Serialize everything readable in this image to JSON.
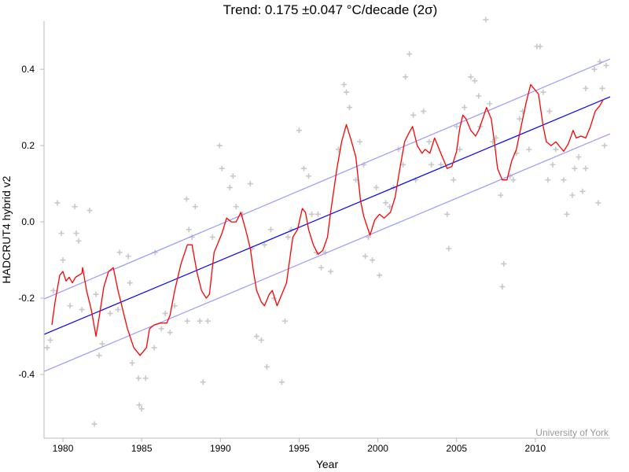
{
  "chart_data": {
    "type": "scatter",
    "title": "Trend: 0.175 ±0.047 °C/decade (2σ)",
    "xlabel": "Year",
    "ylabel": "HADCRUT4 hybrid v2",
    "credit": "University of York",
    "xlim": [
      1978.8,
      2014.75
    ],
    "ylim": [
      -0.567,
      0.526
    ],
    "xticks": [
      1980,
      1985,
      1990,
      1995,
      2000,
      2005,
      2010
    ],
    "xtick_labels": [
      "1980",
      "1985",
      "1990",
      "1995",
      "2000",
      "2005",
      "2010"
    ],
    "yticks": [
      0.4,
      0.2,
      0.0,
      -0.2,
      -0.4
    ],
    "ytick_labels": [
      "0.4",
      "0.2",
      "0.0",
      "-0.2",
      "-0.4"
    ],
    "grid": false,
    "colors": {
      "monthly": "#c8c8c8",
      "running_mean": "#ff0000",
      "trend": "#0000ff",
      "trend_bounds": "#9999ff",
      "axis": "#bbbbbb"
    },
    "trend": {
      "x": [
        1978.8,
        2014.75
      ],
      "y": [
        -0.295,
        0.328
      ]
    },
    "trend_upper": {
      "x": [
        1978.8,
        2014.75
      ],
      "y": [
        -0.202,
        0.427
      ]
    },
    "trend_lower": {
      "x": [
        1978.8,
        2014.75
      ],
      "y": [
        -0.392,
        0.231
      ]
    },
    "running_mean": [
      [
        1979.3,
        -0.27
      ],
      [
        1979.5,
        -0.21
      ],
      [
        1979.8,
        -0.14
      ],
      [
        1980.0,
        -0.13
      ],
      [
        1980.2,
        -0.155
      ],
      [
        1980.4,
        -0.145
      ],
      [
        1980.6,
        -0.16
      ],
      [
        1980.8,
        -0.145
      ],
      [
        1981.0,
        -0.14
      ],
      [
        1981.2,
        -0.135
      ],
      [
        1981.25,
        -0.12
      ],
      [
        1981.5,
        -0.18
      ],
      [
        1981.8,
        -0.23
      ],
      [
        1982.1,
        -0.3
      ],
      [
        1982.3,
        -0.25
      ],
      [
        1982.6,
        -0.17
      ],
      [
        1982.9,
        -0.13
      ],
      [
        1983.2,
        -0.12
      ],
      [
        1983.5,
        -0.18
      ],
      [
        1983.8,
        -0.23
      ],
      [
        1984.1,
        -0.28
      ],
      [
        1984.5,
        -0.33
      ],
      [
        1984.9,
        -0.35
      ],
      [
        1985.3,
        -0.33
      ],
      [
        1985.5,
        -0.28
      ],
      [
        1985.8,
        -0.27
      ],
      [
        1986.2,
        -0.265
      ],
      [
        1986.6,
        -0.265
      ],
      [
        1986.8,
        -0.245
      ],
      [
        1987.1,
        -0.18
      ],
      [
        1987.5,
        -0.11
      ],
      [
        1987.9,
        -0.06
      ],
      [
        1988.2,
        -0.06
      ],
      [
        1988.5,
        -0.13
      ],
      [
        1988.8,
        -0.18
      ],
      [
        1989.1,
        -0.2
      ],
      [
        1989.3,
        -0.19
      ],
      [
        1989.6,
        -0.08
      ],
      [
        1990.1,
        -0.03
      ],
      [
        1990.4,
        0.01
      ],
      [
        1990.7,
        0.0
      ],
      [
        1991.0,
        0.0
      ],
      [
        1991.3,
        0.025
      ],
      [
        1991.6,
        -0.02
      ],
      [
        1991.9,
        -0.07
      ],
      [
        1992.1,
        -0.13
      ],
      [
        1992.3,
        -0.18
      ],
      [
        1992.6,
        -0.21
      ],
      [
        1992.8,
        -0.22
      ],
      [
        1993.1,
        -0.19
      ],
      [
        1993.3,
        -0.18
      ],
      [
        1993.6,
        -0.22
      ],
      [
        1993.9,
        -0.19
      ],
      [
        1994.2,
        -0.16
      ],
      [
        1994.4,
        -0.1
      ],
      [
        1994.6,
        -0.04
      ],
      [
        1994.9,
        -0.02
      ],
      [
        1995.2,
        0.035
      ],
      [
        1995.4,
        0.025
      ],
      [
        1995.6,
        -0.02
      ],
      [
        1995.9,
        -0.06
      ],
      [
        1996.2,
        -0.085
      ],
      [
        1996.5,
        -0.075
      ],
      [
        1996.8,
        -0.04
      ],
      [
        1997.0,
        0.025
      ],
      [
        1997.4,
        0.14
      ],
      [
        1997.7,
        0.21
      ],
      [
        1998.0,
        0.255
      ],
      [
        1998.3,
        0.215
      ],
      [
        1998.6,
        0.17
      ],
      [
        1998.9,
        0.055
      ],
      [
        1999.1,
        0.015
      ],
      [
        1999.5,
        -0.035
      ],
      [
        1999.8,
        0.005
      ],
      [
        2000.1,
        0.02
      ],
      [
        2000.4,
        0.01
      ],
      [
        2000.8,
        0.025
      ],
      [
        2001.1,
        0.065
      ],
      [
        2001.4,
        0.14
      ],
      [
        2001.7,
        0.21
      ],
      [
        2002.0,
        0.235
      ],
      [
        2002.2,
        0.25
      ],
      [
        2002.5,
        0.2
      ],
      [
        2002.8,
        0.18
      ],
      [
        2003.0,
        0.19
      ],
      [
        2003.3,
        0.18
      ],
      [
        2003.6,
        0.22
      ],
      [
        2003.8,
        0.2
      ],
      [
        2004.1,
        0.17
      ],
      [
        2004.4,
        0.14
      ],
      [
        2004.7,
        0.145
      ],
      [
        2005.0,
        0.185
      ],
      [
        2005.2,
        0.245
      ],
      [
        2005.4,
        0.28
      ],
      [
        2005.6,
        0.27
      ],
      [
        2005.9,
        0.24
      ],
      [
        2006.2,
        0.225
      ],
      [
        2006.4,
        0.24
      ],
      [
        2006.7,
        0.275
      ],
      [
        2006.9,
        0.3
      ],
      [
        2007.2,
        0.27
      ],
      [
        2007.4,
        0.21
      ],
      [
        2007.6,
        0.14
      ],
      [
        2007.9,
        0.11
      ],
      [
        2008.2,
        0.11
      ],
      [
        2008.5,
        0.16
      ],
      [
        2008.8,
        0.19
      ],
      [
        2009.1,
        0.25
      ],
      [
        2009.4,
        0.31
      ],
      [
        2009.7,
        0.36
      ],
      [
        2010.2,
        0.335
      ],
      [
        2010.5,
        0.25
      ],
      [
        2010.7,
        0.21
      ],
      [
        2011.0,
        0.2
      ],
      [
        2011.3,
        0.21
      ],
      [
        2011.6,
        0.195
      ],
      [
        2011.8,
        0.185
      ],
      [
        2012.1,
        0.205
      ],
      [
        2012.4,
        0.24
      ],
      [
        2012.6,
        0.22
      ],
      [
        2012.9,
        0.225
      ],
      [
        2013.2,
        0.22
      ],
      [
        2013.5,
        0.25
      ],
      [
        2013.8,
        0.29
      ],
      [
        2014.1,
        0.305
      ],
      [
        2014.3,
        0.32
      ]
    ],
    "monthly": [
      [
        1979.0,
        -0.33
      ],
      [
        1979.2,
        -0.31
      ],
      [
        1979.4,
        -0.18
      ],
      [
        1979.65,
        0.05
      ],
      [
        1979.9,
        -0.03
      ],
      [
        1980.0,
        -0.1
      ],
      [
        1980.45,
        -0.22
      ],
      [
        1980.75,
        0.04
      ],
      [
        1980.85,
        -0.03
      ],
      [
        1981.0,
        -0.05
      ],
      [
        1981.2,
        -0.23
      ],
      [
        1981.7,
        0.03
      ],
      [
        1982.0,
        -0.53
      ],
      [
        1982.1,
        -0.19
      ],
      [
        1982.3,
        -0.35
      ],
      [
        1982.5,
        -0.32
      ],
      [
        1983.0,
        -0.24
      ],
      [
        1983.5,
        -0.23
      ],
      [
        1983.6,
        -0.08
      ],
      [
        1984.15,
        -0.09
      ],
      [
        1984.25,
        -0.16
      ],
      [
        1984.4,
        -0.37
      ],
      [
        1984.8,
        -0.41
      ],
      [
        1984.85,
        -0.48
      ],
      [
        1985.0,
        -0.49
      ],
      [
        1985.25,
        -0.41
      ],
      [
        1985.8,
        -0.33
      ],
      [
        1985.85,
        -0.08
      ],
      [
        1986.25,
        -0.28
      ],
      [
        1986.5,
        -0.24
      ],
      [
        1986.8,
        -0.29
      ],
      [
        1987.1,
        -0.22
      ],
      [
        1987.85,
        0.06
      ],
      [
        1987.9,
        -0.26
      ],
      [
        1988.0,
        -0.02
      ],
      [
        1988.2,
        -0.04
      ],
      [
        1988.4,
        0.04
      ],
      [
        1988.7,
        -0.26
      ],
      [
        1988.9,
        -0.42
      ],
      [
        1989.2,
        -0.26
      ],
      [
        1989.5,
        -0.04
      ],
      [
        1989.95,
        0.2
      ],
      [
        1990.1,
        0.14
      ],
      [
        1990.6,
        0.09
      ],
      [
        1990.8,
        0.12
      ],
      [
        1991.0,
        0.04
      ],
      [
        1991.4,
        0.02
      ],
      [
        1991.9,
        0.1
      ],
      [
        1992.0,
        -0.07
      ],
      [
        1992.3,
        -0.3
      ],
      [
        1992.6,
        -0.31
      ],
      [
        1992.8,
        -0.06
      ],
      [
        1992.95,
        -0.38
      ],
      [
        1993.2,
        -0.02
      ],
      [
        1993.4,
        -0.2
      ],
      [
        1993.9,
        -0.42
      ],
      [
        1994.1,
        -0.26
      ],
      [
        1994.3,
        -0.04
      ],
      [
        1994.5,
        -0.02
      ],
      [
        1995.0,
        0.24
      ],
      [
        1995.3,
        0.14
      ],
      [
        1995.6,
        0.12
      ],
      [
        1995.8,
        0.02
      ],
      [
        1996.1,
        -0.08
      ],
      [
        1996.2,
        0.02
      ],
      [
        1996.4,
        -0.12
      ],
      [
        1996.65,
        -0.08
      ],
      [
        1997.0,
        -0.13
      ],
      [
        1997.5,
        0.19
      ],
      [
        1997.85,
        0.36
      ],
      [
        1998.0,
        0.34
      ],
      [
        1998.2,
        0.3
      ],
      [
        1998.6,
        0.11
      ],
      [
        1998.85,
        0.21
      ],
      [
        1999.1,
        0.15
      ],
      [
        1999.2,
        -0.09
      ],
      [
        1999.4,
        -0.04
      ],
      [
        1999.65,
        -0.1
      ],
      [
        1999.9,
        0.09
      ],
      [
        2000.1,
        -0.14
      ],
      [
        2000.5,
        0.05
      ],
      [
        2000.75,
        0.04
      ],
      [
        2001.0,
        0.09
      ],
      [
        2001.3,
        0.19
      ],
      [
        2001.6,
        0.15
      ],
      [
        2001.75,
        0.38
      ],
      [
        2002.0,
        0.44
      ],
      [
        2002.25,
        0.28
      ],
      [
        2002.4,
        0.11
      ],
      [
        2002.9,
        0.29
      ],
      [
        2003.25,
        0.21
      ],
      [
        2003.4,
        0.15
      ],
      [
        2004.0,
        0.15
      ],
      [
        2004.4,
        0.02
      ],
      [
        2004.5,
        -0.07
      ],
      [
        2004.8,
        0.11
      ],
      [
        2005.0,
        0.25
      ],
      [
        2005.2,
        0.19
      ],
      [
        2005.5,
        0.3
      ],
      [
        2005.9,
        0.38
      ],
      [
        2006.15,
        0.37
      ],
      [
        2006.4,
        0.33
      ],
      [
        2006.5,
        0.25
      ],
      [
        2006.85,
        0.53
      ],
      [
        2007.1,
        0.31
      ],
      [
        2007.3,
        0.21
      ],
      [
        2007.5,
        0.22
      ],
      [
        2007.8,
        0.07
      ],
      [
        2007.9,
        -0.17
      ],
      [
        2008.0,
        -0.11
      ],
      [
        2008.4,
        0.12
      ],
      [
        2008.6,
        0.11
      ],
      [
        2008.8,
        0.18
      ],
      [
        2009.0,
        0.27
      ],
      [
        2009.2,
        0.29
      ],
      [
        2009.6,
        0.19
      ],
      [
        2010.1,
        0.46
      ],
      [
        2010.3,
        0.46
      ],
      [
        2010.5,
        0.34
      ],
      [
        2010.8,
        0.11
      ],
      [
        2010.9,
        0.29
      ],
      [
        2011.1,
        0.15
      ],
      [
        2011.3,
        0.19
      ],
      [
        2011.8,
        0.11
      ],
      [
        2012.0,
        0.02
      ],
      [
        2012.35,
        0.07
      ],
      [
        2012.5,
        0.14
      ],
      [
        2012.75,
        0.17
      ],
      [
        2013.0,
        0.08
      ],
      [
        2013.2,
        0.35
      ],
      [
        2013.2,
        0.14
      ],
      [
        2013.75,
        0.4
      ],
      [
        2014.0,
        0.05
      ],
      [
        2014.1,
        0.42
      ],
      [
        2014.25,
        0.35
      ],
      [
        2014.4,
        0.2
      ],
      [
        2014.5,
        0.41
      ]
    ]
  }
}
